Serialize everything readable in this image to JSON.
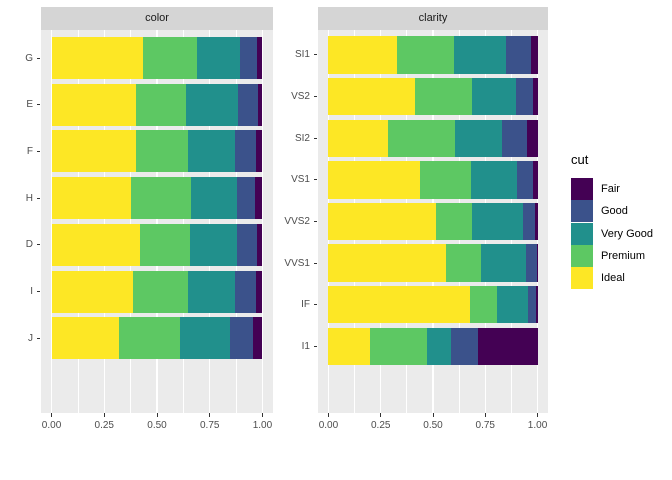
{
  "figure": {
    "background": "#ffffff"
  },
  "theme": {
    "panel_background": "#EBEBEB",
    "strip_background": "#D5D5D5",
    "strip_text_color": "#1A1A1A",
    "grid_color": "#FFFFFF",
    "axis_text_color": "#4D4D4D",
    "tick_mark_color": "#333333"
  },
  "legend": {
    "title": "cut",
    "position": "right",
    "entries": [
      {
        "label": "Fair",
        "color": "#440154"
      },
      {
        "label": "Good",
        "color": "#3B528B"
      },
      {
        "label": "Very Good",
        "color": "#21908C"
      },
      {
        "label": "Premium",
        "color": "#5DC863"
      },
      {
        "label": "Ideal",
        "color": "#FDE725"
      }
    ]
  },
  "chart_data": [
    {
      "type": "bar",
      "stacked": true,
      "normalized": true,
      "orientation": "horizontal",
      "facet_title": "color",
      "categories": [
        "G",
        "E",
        "F",
        "H",
        "D",
        "I",
        "J"
      ],
      "series": [
        {
          "name": "Ideal",
          "color": "#FDE725",
          "values": [
            0.4325,
            0.3984,
            0.401,
            0.3751,
            0.4183,
            0.386,
            0.3191
          ]
        },
        {
          "name": "Premium",
          "color": "#5DC863",
          "values": [
            0.2589,
            0.2385,
            0.2443,
            0.2842,
            0.2366,
            0.2634,
            0.2877
          ]
        },
        {
          "name": "Very Good",
          "color": "#21908C",
          "values": [
            0.2036,
            0.245,
            0.2268,
            0.2196,
            0.2233,
            0.2221,
            0.2414
          ]
        },
        {
          "name": "Good",
          "color": "#3B528B",
          "values": [
            0.0771,
            0.0952,
            0.0953,
            0.0845,
            0.0977,
            0.0963,
            0.1093
          ]
        },
        {
          "name": "Fair",
          "color": "#440154",
          "values": [
            0.0278,
            0.0229,
            0.0327,
            0.0365,
            0.0241,
            0.0323,
            0.0424
          ]
        }
      ],
      "xlim": [
        0,
        1
      ],
      "x_ticks": [
        {
          "value": 0,
          "label": "0.00"
        },
        {
          "value": 0.25,
          "label": "0.25"
        },
        {
          "value": 0.5,
          "label": "0.50"
        },
        {
          "value": 0.75,
          "label": "0.75"
        },
        {
          "value": 1,
          "label": "1.00"
        }
      ],
      "grid": true
    },
    {
      "type": "bar",
      "stacked": true,
      "normalized": true,
      "orientation": "horizontal",
      "facet_title": "clarity",
      "categories": [
        "SI1",
        "VS2",
        "SI2",
        "VS1",
        "VVS2",
        "VVS1",
        "IF",
        "I1"
      ],
      "series": [
        {
          "name": "Ideal",
          "color": "#FDE725",
          "values": [
            0.3277,
            0.4137,
            0.2826,
            0.4392,
            0.5144,
            0.56,
            0.6771,
            0.197
          ]
        },
        {
          "name": "Premium",
          "color": "#5DC863",
          "values": [
            0.2736,
            0.2739,
            0.3208,
            0.2434,
            0.1717,
            0.1685,
            0.1285,
            0.2767
          ]
        },
        {
          "name": "Very Good",
          "color": "#21908C",
          "values": [
            0.248,
            0.2114,
            0.2284,
            0.2172,
            0.2438,
            0.2159,
            0.1497,
            0.1134
          ]
        },
        {
          "name": "Good",
          "color": "#3B528B",
          "values": [
            0.1194,
            0.0798,
            0.1176,
            0.0793,
            0.0565,
            0.0509,
            0.0397,
            0.1296
          ]
        },
        {
          "name": "Fair",
          "color": "#440154",
          "values": [
            0.0312,
            0.0213,
            0.0507,
            0.0208,
            0.0136,
            0.0047,
            0.005,
            0.2834
          ]
        }
      ],
      "xlim": [
        0,
        1
      ],
      "x_ticks": [
        {
          "value": 0,
          "label": "0.00"
        },
        {
          "value": 0.25,
          "label": "0.25"
        },
        {
          "value": 0.5,
          "label": "0.50"
        },
        {
          "value": 0.75,
          "label": "0.75"
        },
        {
          "value": 1,
          "label": "1.00"
        }
      ],
      "grid": true
    }
  ]
}
